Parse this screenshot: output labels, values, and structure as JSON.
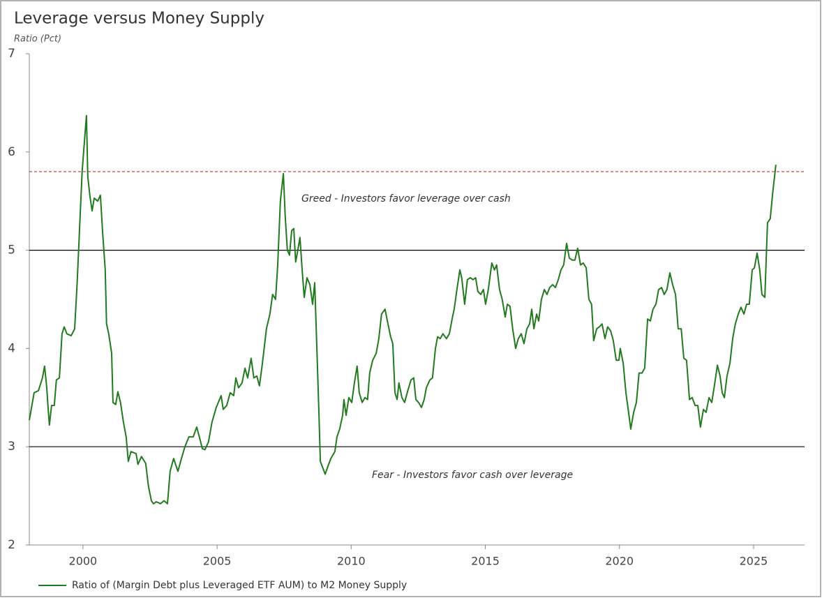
{
  "chart_data": {
    "type": "line",
    "title": "Leverage versus Money Supply",
    "y_label": "Ratio (Pct)",
    "x": [
      1998.0,
      1998.18,
      1998.34,
      1998.49,
      1998.57,
      1998.65,
      1998.7,
      1998.75,
      1998.83,
      1998.93,
      1999.01,
      1999.12,
      1999.22,
      1999.3,
      1999.4,
      1999.56,
      1999.69,
      1999.79,
      1999.87,
      1999.97,
      2000.08,
      2000.13,
      2000.18,
      2000.26,
      2000.34,
      2000.42,
      2000.55,
      2000.65,
      2000.73,
      2000.83,
      2000.88,
      2000.96,
      2001.07,
      2001.12,
      2001.22,
      2001.3,
      2001.4,
      2001.51,
      2001.61,
      2001.69,
      2001.79,
      2001.98,
      2002.05,
      2002.18,
      2002.34,
      2002.44,
      2002.55,
      2002.63,
      2002.73,
      2002.89,
      2003.02,
      2003.15,
      2003.25,
      2003.38,
      2003.54,
      2003.67,
      2003.8,
      2003.95,
      2004.11,
      2004.24,
      2004.34,
      2004.45,
      2004.55,
      2004.68,
      2004.81,
      2004.97,
      2005.15,
      2005.23,
      2005.36,
      2005.49,
      2005.62,
      2005.7,
      2005.8,
      2005.93,
      2006.04,
      2006.14,
      2006.27,
      2006.37,
      2006.48,
      2006.58,
      2006.69,
      2006.84,
      2006.97,
      2007.07,
      2007.18,
      2007.26,
      2007.36,
      2007.47,
      2007.54,
      2007.62,
      2007.7,
      2007.78,
      2007.86,
      2007.93,
      2008.01,
      2008.09,
      2008.17,
      2008.25,
      2008.35,
      2008.46,
      2008.56,
      2008.64,
      2008.72,
      2008.79,
      2008.85,
      2008.92,
      2009.03,
      2009.13,
      2009.24,
      2009.39,
      2009.47,
      2009.57,
      2009.68,
      2009.73,
      2009.81,
      2009.91,
      2010.02,
      2010.12,
      2010.22,
      2010.3,
      2010.41,
      2010.51,
      2010.61,
      2010.69,
      2010.8,
      2010.93,
      2011.03,
      2011.13,
      2011.26,
      2011.37,
      2011.47,
      2011.55,
      2011.63,
      2011.71,
      2011.78,
      2011.89,
      2011.99,
      2012.12,
      2012.23,
      2012.33,
      2012.41,
      2012.51,
      2012.62,
      2012.72,
      2012.8,
      2012.93,
      2013.03,
      2013.14,
      2013.22,
      2013.32,
      2013.42,
      2013.55,
      2013.66,
      2013.76,
      2013.84,
      2013.94,
      2014.05,
      2014.12,
      2014.23,
      2014.33,
      2014.44,
      2014.54,
      2014.64,
      2014.72,
      2014.83,
      2014.93,
      2015.01,
      2015.11,
      2015.24,
      2015.34,
      2015.42,
      2015.53,
      2015.63,
      2015.74,
      2015.82,
      2015.92,
      2016.02,
      2016.13,
      2016.23,
      2016.34,
      2016.44,
      2016.55,
      2016.65,
      2016.73,
      2016.81,
      2016.91,
      2016.99,
      2017.09,
      2017.2,
      2017.3,
      2017.4,
      2017.51,
      2017.61,
      2017.72,
      2017.82,
      2017.92,
      2018.03,
      2018.13,
      2018.24,
      2018.34,
      2018.44,
      2018.55,
      2018.65,
      2018.76,
      2018.86,
      2018.96,
      2019.04,
      2019.15,
      2019.25,
      2019.35,
      2019.46,
      2019.56,
      2019.67,
      2019.77,
      2019.88,
      2019.98,
      2020.03,
      2020.14,
      2020.24,
      2020.34,
      2020.42,
      2020.53,
      2020.63,
      2020.73,
      2020.84,
      2020.94,
      2021.05,
      2021.15,
      2021.25,
      2021.36,
      2021.46,
      2021.57,
      2021.67,
      2021.77,
      2021.88,
      2021.98,
      2022.09,
      2022.19,
      2022.3,
      2022.4,
      2022.5,
      2022.61,
      2022.71,
      2022.82,
      2022.92,
      2023.02,
      2023.13,
      2023.23,
      2023.34,
      2023.44,
      2023.54,
      2023.65,
      2023.75,
      2023.83,
      2023.91,
      2024.01,
      2024.12,
      2024.22,
      2024.32,
      2024.43,
      2024.53,
      2024.64,
      2024.74,
      2024.84,
      2024.95,
      2025.03,
      2025.13,
      2025.23,
      2025.31,
      2025.42,
      2025.52,
      2025.62,
      2025.72,
      2025.83
    ],
    "series": [
      {
        "name": "Ratio of (Margin Debt plus Leveraged ETF AUM) to M2 Money Supply",
        "color": "#217a1e",
        "values": [
          3.27,
          3.55,
          3.57,
          3.7,
          3.82,
          3.6,
          3.4,
          3.22,
          3.42,
          3.42,
          3.68,
          3.7,
          4.15,
          4.22,
          4.15,
          4.13,
          4.2,
          4.7,
          5.2,
          5.8,
          6.2,
          6.37,
          5.75,
          5.55,
          5.4,
          5.53,
          5.5,
          5.56,
          5.2,
          4.8,
          4.25,
          4.15,
          3.95,
          3.45,
          3.43,
          3.56,
          3.45,
          3.25,
          3.1,
          2.85,
          2.95,
          2.93,
          2.82,
          2.9,
          2.83,
          2.6,
          2.45,
          2.42,
          2.44,
          2.42,
          2.45,
          2.42,
          2.75,
          2.88,
          2.75,
          2.88,
          3.0,
          3.1,
          3.1,
          3.2,
          3.1,
          2.98,
          2.97,
          3.05,
          3.25,
          3.4,
          3.52,
          3.38,
          3.42,
          3.55,
          3.52,
          3.7,
          3.6,
          3.65,
          3.8,
          3.7,
          3.9,
          3.7,
          3.72,
          3.62,
          3.85,
          4.2,
          4.35,
          4.55,
          4.5,
          4.85,
          5.5,
          5.78,
          5.35,
          5.0,
          4.95,
          5.2,
          5.22,
          4.88,
          5.0,
          5.13,
          4.8,
          4.52,
          4.72,
          4.65,
          4.45,
          4.67,
          4.0,
          3.4,
          2.85,
          2.8,
          2.72,
          2.8,
          2.88,
          2.95,
          3.1,
          3.18,
          3.32,
          3.48,
          3.32,
          3.5,
          3.45,
          3.65,
          3.82,
          3.55,
          3.45,
          3.5,
          3.48,
          3.75,
          3.88,
          3.95,
          4.1,
          4.35,
          4.4,
          4.25,
          4.12,
          4.05,
          3.55,
          3.48,
          3.65,
          3.5,
          3.45,
          3.58,
          3.68,
          3.7,
          3.48,
          3.45,
          3.4,
          3.48,
          3.6,
          3.68,
          3.7,
          4.0,
          4.12,
          4.1,
          4.15,
          4.1,
          4.15,
          4.3,
          4.4,
          4.6,
          4.8,
          4.72,
          4.45,
          4.7,
          4.72,
          4.7,
          4.72,
          4.58,
          4.55,
          4.6,
          4.45,
          4.6,
          4.87,
          4.8,
          4.85,
          4.6,
          4.5,
          4.32,
          4.45,
          4.43,
          4.2,
          4.0,
          4.1,
          4.15,
          4.05,
          4.2,
          4.25,
          4.4,
          4.2,
          4.35,
          4.28,
          4.5,
          4.6,
          4.55,
          4.62,
          4.65,
          4.62,
          4.7,
          4.8,
          4.85,
          5.07,
          4.92,
          4.9,
          4.9,
          5.02,
          4.85,
          4.87,
          4.82,
          4.5,
          4.45,
          4.08,
          4.2,
          4.22,
          4.25,
          4.1,
          4.22,
          4.18,
          4.08,
          3.88,
          3.88,
          4.0,
          3.85,
          3.55,
          3.35,
          3.18,
          3.35,
          3.45,
          3.75,
          3.75,
          3.8,
          4.3,
          4.28,
          4.4,
          4.45,
          4.6,
          4.62,
          4.55,
          4.6,
          4.77,
          4.65,
          4.55,
          4.2,
          4.2,
          3.9,
          3.88,
          3.48,
          3.5,
          3.42,
          3.42,
          3.2,
          3.38,
          3.35,
          3.5,
          3.45,
          3.62,
          3.83,
          3.72,
          3.55,
          3.5,
          3.72,
          3.85,
          4.1,
          4.25,
          4.35,
          4.42,
          4.35,
          4.45,
          4.45,
          4.8,
          4.82,
          4.97,
          4.8,
          4.55,
          4.52,
          5.28,
          5.32,
          5.6,
          5.87
        ]
      }
    ],
    "xlim": [
      1998,
      2026.9
    ],
    "xticks": [
      2000,
      2005,
      2010,
      2015,
      2020,
      2025
    ],
    "ylim": [
      2,
      7
    ],
    "yticks": [
      2,
      3,
      4,
      5,
      6,
      7
    ],
    "reference_lines": [
      {
        "value": 5.8,
        "color": "#c0392b",
        "style": "dashed"
      },
      {
        "value": 5,
        "color": "#000000",
        "style": "solid"
      },
      {
        "value": 3,
        "color": "#000000",
        "style": "solid"
      }
    ],
    "annotations": [
      "Greed - Investors favor leverage over cash",
      "Fear - Investors favor cash over leverage"
    ],
    "legend": "bottom-left"
  }
}
